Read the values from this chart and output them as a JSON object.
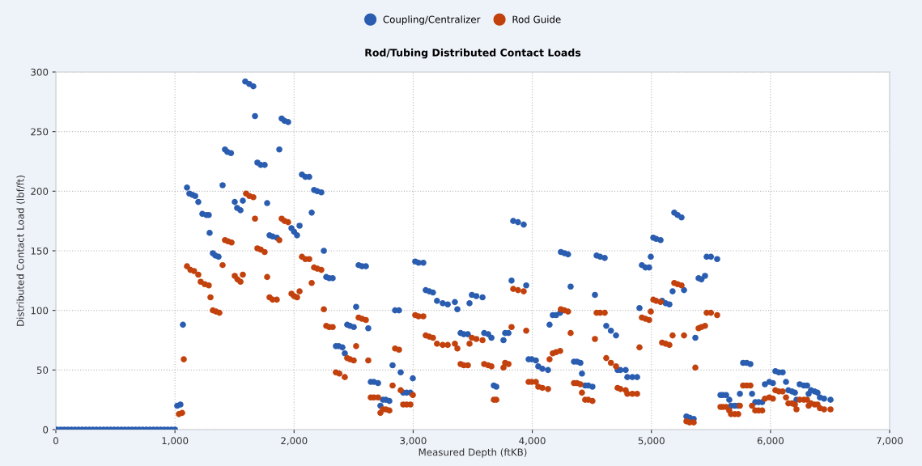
{
  "chart_data": {
    "type": "scatter",
    "title": "Rod/Tubing Distributed Contact Loads",
    "xlabel": "Measured Depth (ftKB)",
    "ylabel": "Distributed Contact Load (lbf/ft)",
    "xlim": [
      0,
      7000
    ],
    "xticks": [
      0,
      {
        "value": 1000,
        "label": "1,000"
      },
      {
        "value": 2000,
        "label": "2,000"
      },
      {
        "value": 3000,
        "label": "3,000"
      },
      {
        "value": 4000,
        "label": "4,000"
      },
      {
        "value": 5000,
        "label": "5,000"
      },
      {
        "value": 6000,
        "label": "6,000"
      },
      {
        "value": 7000,
        "label": "7,000"
      }
    ],
    "ylim": [
      0,
      300
    ],
    "yticks": [
      0,
      50,
      100,
      150,
      200,
      250,
      300
    ],
    "grid": true,
    "legend": "top",
    "marker": "circle",
    "series": [
      {
        "name": "Coupling/Centralizer",
        "color": "#2a5db0",
        "x": [
          10,
          40,
          70,
          100,
          130,
          160,
          190,
          220,
          250,
          280,
          310,
          340,
          370,
          400,
          430,
          460,
          490,
          520,
          550,
          580,
          610,
          640,
          670,
          700,
          730,
          760,
          790,
          820,
          850,
          880,
          910,
          940,
          970,
          1000,
          1019,
          1046,
          1067,
          1101,
          1121,
          1146,
          1170,
          1196,
          1230,
          1264,
          1284,
          1291,
          1318,
          1339,
          1366,
          1400,
          1420,
          1440,
          1470,
          1502,
          1522,
          1550,
          1570,
          1590,
          1624,
          1658,
          1672,
          1692,
          1720,
          1753,
          1774,
          1794,
          1820,
          1855,
          1876,
          1896,
          1920,
          1950,
          1978,
          2000,
          2025,
          2046,
          2066,
          2095,
          2127,
          2148,
          2168,
          2195,
          2229,
          2250,
          2270,
          2295,
          2324,
          2351,
          2375,
          2406,
          2426,
          2446,
          2470,
          2501,
          2521,
          2542,
          2570,
          2603,
          2623,
          2644,
          2670,
          2705,
          2725,
          2746,
          2770,
          2800,
          2827,
          2848,
          2881,
          2895,
          2916,
          2945,
          2977,
          2997,
          3017,
          3045,
          3085,
          3105,
          3135,
          3166,
          3200,
          3248,
          3290,
          3350,
          3371,
          3398,
          3425,
          3459,
          3473,
          3493,
          3530,
          3582,
          3596,
          3630,
          3657,
          3677,
          3698,
          3758,
          3772,
          3800,
          3826,
          3840,
          3880,
          3928,
          3949,
          3969,
          3995,
          4030,
          4050,
          4085,
          4132,
          4145,
          4172,
          4200,
          4234,
          4240,
          4270,
          4300,
          4322,
          4350,
          4375,
          4404,
          4417,
          4444,
          4470,
          4505,
          4526,
          4540,
          4570,
          4608,
          4621,
          4660,
          4703,
          4716,
          4740,
          4784,
          4798,
          4840,
          4880,
          4900,
          4920,
          4950,
          4981,
          4995,
          5016,
          5040,
          5077,
          5090,
          5120,
          5151,
          5178,
          5192,
          5220,
          5253,
          5274,
          5294,
          5320,
          5355,
          5369,
          5396,
          5420,
          5450,
          5464,
          5500,
          5552,
          5580,
          5600,
          5627,
          5654,
          5668,
          5700,
          5729,
          5743,
          5770,
          5800,
          5831,
          5845,
          5872,
          5900,
          5930,
          5953,
          5990,
          6020,
          6041,
          6070,
          6102,
          6130,
          6150,
          6180,
          6205,
          6218,
          6245,
          6280,
          6307,
          6320,
          6340,
          6370,
          6395,
          6415,
          6450,
          6504
        ],
        "values": [
          0,
          0,
          0,
          0,
          0,
          0,
          0,
          0,
          0,
          0,
          0,
          0,
          0,
          0,
          0,
          0,
          0,
          0,
          0,
          0,
          0,
          0,
          0,
          0,
          0,
          0,
          0,
          0,
          0,
          0,
          0,
          0,
          0,
          0,
          20,
          21,
          88,
          203,
          198,
          197,
          196,
          191,
          181,
          180,
          180,
          165,
          148,
          146,
          145,
          205,
          235,
          233,
          232,
          191,
          186,
          184,
          192,
          292,
          290,
          288,
          263,
          224,
          222,
          222,
          190,
          163,
          162,
          161,
          235,
          261,
          259,
          258,
          169,
          166,
          163,
          171,
          214,
          212,
          212,
          182,
          201,
          200,
          199,
          150,
          128,
          127,
          127,
          70,
          70,
          69,
          64,
          88,
          87,
          86,
          103,
          138,
          137,
          137,
          85,
          40,
          40,
          39,
          20,
          25,
          25,
          24,
          54,
          100,
          100,
          48,
          31,
          31,
          31,
          43,
          141,
          140,
          140,
          117,
          116,
          115,
          108,
          106,
          105,
          107,
          101,
          81,
          80,
          80,
          106,
          113,
          112,
          111,
          81,
          80,
          77,
          37,
          36,
          75,
          81,
          81,
          125,
          175,
          174,
          172,
          121,
          59,
          59,
          58,
          53,
          51,
          50,
          88,
          96,
          96,
          98,
          149,
          148,
          147,
          120,
          57,
          57,
          56,
          47,
          37,
          37,
          36,
          113,
          146,
          145,
          144,
          87,
          83,
          79,
          50,
          50,
          50,
          44,
          44,
          44,
          102,
          138,
          136,
          136,
          145,
          161,
          160,
          159,
          108,
          106,
          105,
          116,
          182,
          180,
          178,
          117,
          11,
          10,
          9,
          77,
          127,
          126,
          129,
          145,
          145,
          143,
          29,
          29,
          29,
          25,
          20,
          20,
          20,
          30,
          56,
          56,
          55,
          30,
          23,
          23,
          23,
          38,
          40,
          39,
          49,
          48,
          48,
          40,
          33,
          32,
          31,
          25,
          38,
          37,
          37,
          30,
          33,
          32,
          31,
          27,
          26,
          25
        ]
      },
      {
        "name": "Rod Guide",
        "color": "#c2410c",
        "x": [
          1033,
          1060,
          1074,
          1101,
          1130,
          1160,
          1196,
          1216,
          1250,
          1284,
          1298,
          1318,
          1345,
          1373,
          1400,
          1420,
          1445,
          1475,
          1502,
          1525,
          1550,
          1570,
          1597,
          1625,
          1658,
          1672,
          1692,
          1720,
          1753,
          1774,
          1794,
          1820,
          1855,
          1876,
          1896,
          1920,
          1950,
          1978,
          2000,
          2025,
          2046,
          2066,
          2095,
          2127,
          2148,
          2168,
          2195,
          2229,
          2250,
          2270,
          2295,
          2324,
          2351,
          2380,
          2426,
          2446,
          2470,
          2501,
          2521,
          2542,
          2570,
          2603,
          2623,
          2644,
          2670,
          2705,
          2725,
          2746,
          2770,
          2800,
          2827,
          2848,
          2881,
          2895,
          2916,
          2945,
          2977,
          2997,
          3017,
          3045,
          3085,
          3105,
          3135,
          3166,
          3200,
          3248,
          3290,
          3350,
          3371,
          3398,
          3425,
          3459,
          3473,
          3493,
          3530,
          3582,
          3596,
          3630,
          3657,
          3677,
          3698,
          3758,
          3772,
          3800,
          3826,
          3840,
          3880,
          3928,
          3949,
          3969,
          3995,
          4030,
          4050,
          4085,
          4132,
          4145,
          4172,
          4200,
          4234,
          4240,
          4270,
          4300,
          4322,
          4350,
          4375,
          4404,
          4417,
          4444,
          4470,
          4505,
          4526,
          4540,
          4570,
          4608,
          4621,
          4660,
          4703,
          4716,
          4740,
          4784,
          4798,
          4840,
          4880,
          4900,
          4920,
          4950,
          4981,
          4995,
          5016,
          5040,
          5077,
          5090,
          5120,
          5151,
          5178,
          5192,
          5220,
          5253,
          5274,
          5294,
          5320,
          5355,
          5369,
          5396,
          5420,
          5450,
          5464,
          5500,
          5552,
          5580,
          5600,
          5627,
          5654,
          5668,
          5700,
          5729,
          5743,
          5770,
          5800,
          5831,
          5845,
          5872,
          5900,
          5930,
          5953,
          5990,
          6020,
          6041,
          6070,
          6102,
          6130,
          6150,
          6180,
          6205,
          6218,
          6245,
          6280,
          6307,
          6320,
          6340,
          6370,
          6395,
          6415,
          6450,
          6504
        ],
        "values": [
          13,
          14,
          59,
          137,
          134,
          133,
          130,
          124,
          122,
          121,
          111,
          100,
          99,
          98,
          138,
          159,
          158,
          157,
          129,
          126,
          124,
          130,
          198,
          196,
          195,
          177,
          152,
          151,
          149,
          128,
          111,
          109,
          109,
          159,
          177,
          175,
          174,
          114,
          112,
          111,
          116,
          145,
          143,
          143,
          123,
          136,
          135,
          134,
          101,
          87,
          86,
          86,
          48,
          47,
          44,
          60,
          59,
          58,
          70,
          94,
          93,
          92,
          58,
          27,
          27,
          27,
          14,
          17,
          17,
          16,
          37,
          68,
          67,
          33,
          21,
          21,
          21,
          29,
          96,
          95,
          95,
          79,
          78,
          77,
          72,
          71,
          71,
          72,
          68,
          55,
          54,
          54,
          72,
          77,
          76,
          75,
          55,
          54,
          53,
          25,
          25,
          52,
          56,
          55,
          86,
          118,
          117,
          116,
          83,
          40,
          40,
          40,
          36,
          35,
          34,
          59,
          64,
          65,
          66,
          101,
          100,
          99,
          81,
          39,
          39,
          38,
          31,
          25,
          25,
          24,
          76,
          98,
          98,
          98,
          60,
          56,
          53,
          35,
          34,
          33,
          30,
          30,
          30,
          69,
          94,
          93,
          92,
          99,
          109,
          108,
          107,
          73,
          72,
          71,
          79,
          123,
          122,
          121,
          79,
          7,
          6,
          6,
          52,
          85,
          86,
          87,
          98,
          98,
          96,
          19,
          19,
          19,
          16,
          13,
          13,
          13,
          20,
          37,
          37,
          37,
          20,
          16,
          16,
          16,
          26,
          27,
          26,
          33,
          32,
          32,
          27,
          22,
          22,
          21,
          17,
          25,
          25,
          25,
          20,
          22,
          21,
          21,
          18,
          17,
          17
        ]
      }
    ]
  }
}
